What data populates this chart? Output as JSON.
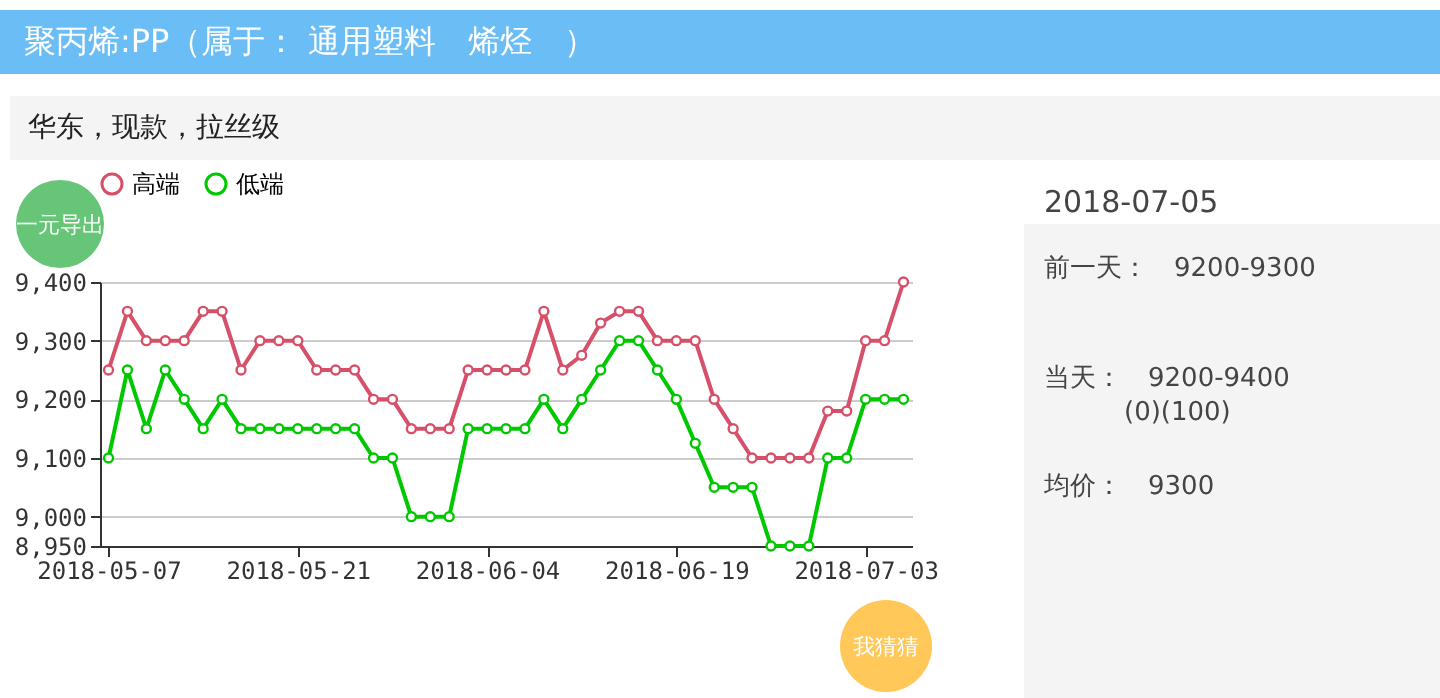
{
  "chart_data": {
    "type": "line",
    "title": "聚丙烯:PP（属于： 通用塑料　烯烃　）",
    "subtitle": "华东，现款，拉丝级",
    "categories": [
      "2018-05-07",
      null,
      null,
      null,
      null,
      null,
      null,
      null,
      null,
      null,
      "2018-05-21",
      null,
      null,
      null,
      null,
      null,
      null,
      null,
      null,
      null,
      "2018-06-04",
      null,
      null,
      null,
      null,
      null,
      null,
      null,
      null,
      null,
      "2018-06-19",
      null,
      null,
      null,
      null,
      null,
      null,
      null,
      null,
      null,
      "2018-07-03",
      null,
      null
    ],
    "series": [
      {
        "name": "高端",
        "color": "#d6506a",
        "values": [
          9250,
          9350,
          9300,
          9300,
          9300,
          9350,
          9350,
          9250,
          9300,
          9300,
          9300,
          9250,
          9250,
          9250,
          9200,
          9200,
          9150,
          9150,
          9150,
          9250,
          9250,
          9250,
          9250,
          9350,
          9250,
          9275,
          9330,
          9350,
          9350,
          9300,
          9300,
          9300,
          9200,
          9150,
          9100,
          9100,
          9100,
          9100,
          9180,
          9180,
          9300,
          9300,
          9400
        ]
      },
      {
        "name": "低端",
        "color": "#00c800",
        "values": [
          9100,
          9250,
          9150,
          9250,
          9200,
          9150,
          9200,
          9150,
          9150,
          9150,
          9150,
          9150,
          9150,
          9150,
          9100,
          9100,
          9000,
          9000,
          9000,
          9150,
          9150,
          9150,
          9150,
          9200,
          9150,
          9200,
          9250,
          9300,
          9300,
          9250,
          9200,
          9125,
          9050,
          9050,
          9050,
          8950,
          8950,
          8950,
          9100,
          9100,
          9200,
          9200,
          9200
        ]
      }
    ],
    "ylim": [
      8950,
      9400
    ],
    "yticks": [
      {
        "value": 8950,
        "label": "8,950"
      },
      {
        "value": 9000,
        "label": "9,000"
      },
      {
        "value": 9100,
        "label": "9,100"
      },
      {
        "value": 9200,
        "label": "9,200"
      },
      {
        "value": 9300,
        "label": "9,300"
      },
      {
        "value": 9400,
        "label": "9,400"
      }
    ],
    "grid": "y",
    "legend": "top",
    "marker": "circle",
    "line_style": "solid",
    "annotations": [
      "2018-07-05",
      "前一天：　9200-9300",
      "当天：　9200-9400",
      "(0)(100)",
      "均价：　9300",
      "一元导出",
      "我猜猜"
    ]
  }
}
